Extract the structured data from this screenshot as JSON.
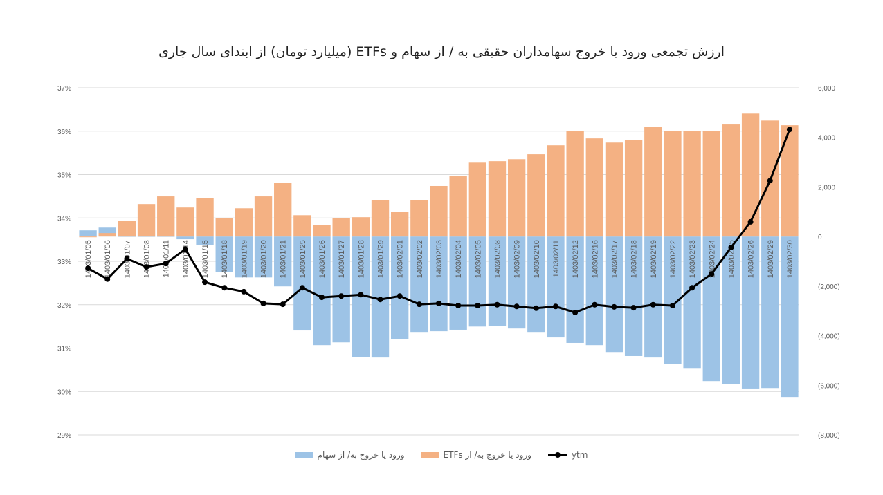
{
  "chart_data": {
    "type": "bar+line",
    "title": "ارزش تجمعی ورود یا خروج سهامداران حقیقی به / از سهام و ETFs (میلیارد تومان) از ابتدای سال جاری",
    "categories": [
      "1403/01/05",
      "1403/01/06",
      "1403/01/07",
      "1403/01/08",
      "1403/01/11",
      "1403/01/14",
      "1403/01/15",
      "1403/01/18",
      "1403/01/19",
      "1403/01/20",
      "1403/01/21",
      "1403/01/25",
      "1403/01/26",
      "1403/01/27",
      "1403/01/28",
      "1403/01/29",
      "1403/02/01",
      "1403/02/02",
      "1403/02/03",
      "1403/02/04",
      "1403/02/05",
      "1403/02/08",
      "1403/02/09",
      "1403/02/10",
      "1403/02/11",
      "1403/02/12",
      "1403/02/16",
      "1403/02/17",
      "1403/02/18",
      "1403/02/19",
      "1403/02/22",
      "1403/02/23",
      "1403/02/24",
      "1403/02/25",
      "1403/02/26",
      "1403/02/29",
      "1403/02/30"
    ],
    "left_axis": {
      "ylim": [
        29,
        37
      ],
      "ticks": [
        "37%",
        "36%",
        "35%",
        "34%",
        "33%",
        "32%",
        "31%",
        "30%",
        "29%"
      ]
    },
    "right_axis": {
      "ylim": [
        -8000,
        6000
      ],
      "ticks": [
        "6,000",
        "4,000",
        "2,000",
        "0",
        "(2,000)",
        "(4,000)",
        "(6,000)",
        "(8,000)"
      ],
      "negative_color": "#c00000"
    },
    "grid": true,
    "legend_placement": "bottom",
    "series": [
      {
        "name": "ورود یا خروج به/ از سهام",
        "type": "bar",
        "axis": "right",
        "color": "#9dc3e6",
        "values": [
          250,
          360,
          0,
          0,
          0,
          -110,
          -330,
          -1420,
          -1650,
          -1650,
          -2010,
          -3790,
          -4380,
          -4270,
          -4850,
          -4880,
          -4130,
          -3850,
          -3820,
          -3760,
          -3630,
          -3600,
          -3710,
          -3850,
          -4070,
          -4290,
          -4380,
          -4660,
          -4820,
          -4880,
          -5130,
          -5330,
          -5830,
          -5940,
          -6130,
          -6110,
          -6470
        ]
      },
      {
        "name": "ورود یا خروج به/ از ETFs",
        "type": "bar",
        "axis": "right",
        "color": "#f4b183",
        "values": [
          -30,
          140,
          640,
          1310,
          1620,
          1170,
          1560,
          750,
          1140,
          1620,
          2170,
          860,
          450,
          750,
          780,
          1480,
          1000,
          1480,
          2040,
          2430,
          2980,
          3040,
          3120,
          3320,
          3680,
          4270,
          3960,
          3790,
          3900,
          4430,
          4270,
          4270,
          4270,
          4520,
          4960,
          4680,
          4490
        ]
      },
      {
        "name": "ytm",
        "type": "line",
        "axis": "left",
        "color": "#000000",
        "values": [
          32.84,
          32.59,
          33.06,
          32.87,
          32.95,
          33.28,
          32.52,
          32.39,
          32.3,
          32.03,
          32.01,
          32.39,
          32.17,
          32.2,
          32.23,
          32.12,
          32.2,
          32.01,
          32.03,
          31.98,
          31.98,
          32.0,
          31.96,
          31.92,
          31.96,
          31.82,
          32.0,
          31.95,
          31.93,
          32.0,
          31.98,
          32.39,
          32.71,
          33.32,
          33.91,
          34.86,
          36.04
        ]
      }
    ]
  }
}
